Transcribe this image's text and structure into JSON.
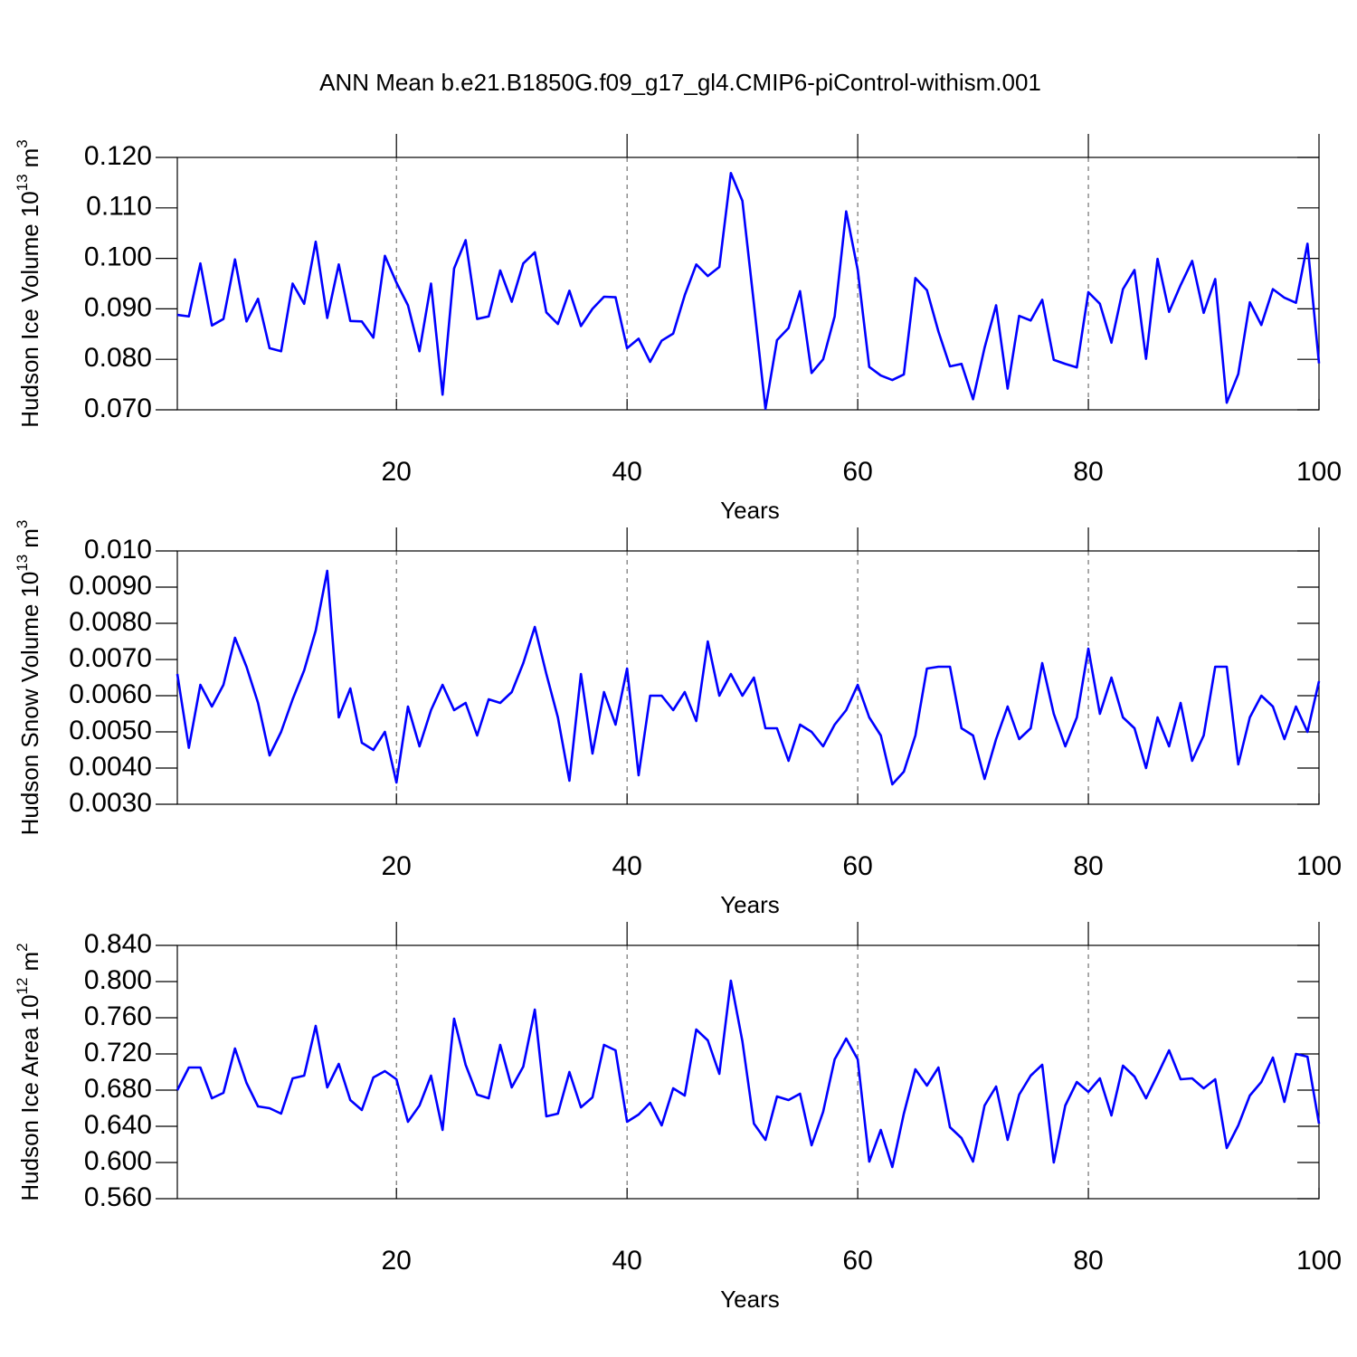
{
  "title": "ANN Mean b.e21.B1850G.f09_g17_gl4.CMIP6-piControl-withism.001",
  "chart_data": [
    {
      "type": "line",
      "ylabel": "Hudson Ice Volume",
      "yunit": {
        "scale": "10",
        "scale_exp": "13",
        "unit": "m",
        "unit_exp": "3"
      },
      "xlabel": "Years",
      "color": "#0000ff",
      "grid": "x",
      "xlim": [
        1,
        100
      ],
      "xticks": [
        20,
        40,
        60,
        80,
        100
      ],
      "ylim": [
        0.07,
        0.12
      ],
      "yticks": [
        {
          "value": 0.07,
          "label": "0.070"
        },
        {
          "value": 0.08,
          "label": "0.080"
        },
        {
          "value": 0.09,
          "label": "0.090"
        },
        {
          "value": 0.1,
          "label": "0.100"
        },
        {
          "value": 0.11,
          "label": "0.110"
        },
        {
          "value": 0.12,
          "label": "0.120"
        }
      ],
      "x": [
        1,
        2,
        3,
        4,
        5,
        6,
        7,
        8,
        9,
        10,
        11,
        12,
        13,
        14,
        15,
        16,
        17,
        18,
        19,
        20,
        21,
        22,
        23,
        24,
        25,
        26,
        27,
        28,
        29,
        30,
        31,
        32,
        33,
        34,
        35,
        36,
        37,
        38,
        39,
        40,
        41,
        42,
        43,
        44,
        45,
        46,
        47,
        48,
        49,
        50,
        51,
        52,
        53,
        54,
        55,
        56,
        57,
        58,
        59,
        60,
        61,
        62,
        63,
        64,
        65,
        66,
        67,
        68,
        69,
        70,
        71,
        72,
        73,
        74,
        75,
        76,
        77,
        78,
        79,
        80,
        81,
        82,
        83,
        84,
        85,
        86,
        87,
        88,
        89,
        90,
        91,
        92,
        93,
        94,
        95,
        96,
        97,
        98,
        99,
        100
      ],
      "values": [
        0.0888,
        0.0885,
        0.099,
        0.0867,
        0.088,
        0.0998,
        0.0875,
        0.092,
        0.0822,
        0.0816,
        0.095,
        0.091,
        0.1033,
        0.0882,
        0.0988,
        0.0876,
        0.0875,
        0.0843,
        0.1005,
        0.0952,
        0.0907,
        0.0816,
        0.095,
        0.073,
        0.098,
        0.1036,
        0.088,
        0.0885,
        0.0976,
        0.0914,
        0.099,
        0.1012,
        0.0893,
        0.087,
        0.0936,
        0.0866,
        0.09,
        0.0924,
        0.0923,
        0.0822,
        0.0841,
        0.0795,
        0.0837,
        0.0851,
        0.0927,
        0.0988,
        0.0965,
        0.0983,
        0.1169,
        0.1114,
        0.091,
        0.0702,
        0.0838,
        0.0862,
        0.0935,
        0.0773,
        0.08,
        0.0885,
        0.1093,
        0.0977,
        0.0785,
        0.0768,
        0.0759,
        0.077,
        0.0961,
        0.0937,
        0.0855,
        0.0786,
        0.0791,
        0.0721,
        0.0823,
        0.0907,
        0.0742,
        0.0886,
        0.0877,
        0.0918,
        0.0799,
        0.0791,
        0.0784,
        0.0933,
        0.091,
        0.0833,
        0.0939,
        0.0977,
        0.0801,
        0.0999,
        0.0894,
        0.0947,
        0.0995,
        0.0892,
        0.0959,
        0.0714,
        0.0771,
        0.0913,
        0.0868,
        0.0939,
        0.0922,
        0.0912,
        0.1029,
        0.0792
      ]
    },
    {
      "type": "line",
      "ylabel": "Hudson Snow Volume",
      "yunit": {
        "scale": "10",
        "scale_exp": "13",
        "unit": "m",
        "unit_exp": "3"
      },
      "xlabel": "Years",
      "color": "#0000ff",
      "grid": "x",
      "xlim": [
        1,
        100
      ],
      "xticks": [
        20,
        40,
        60,
        80,
        100
      ],
      "ylim": [
        0.003,
        0.01
      ],
      "yticks": [
        {
          "value": 0.003,
          "label": "0.0030"
        },
        {
          "value": 0.004,
          "label": "0.0040"
        },
        {
          "value": 0.005,
          "label": "0.0050"
        },
        {
          "value": 0.006,
          "label": "0.0060"
        },
        {
          "value": 0.007,
          "label": "0.0070"
        },
        {
          "value": 0.008,
          "label": "0.0080"
        },
        {
          "value": 0.009,
          "label": "0.0090"
        },
        {
          "value": 0.01,
          "label": "0.010"
        }
      ],
      "x": [
        1,
        2,
        3,
        4,
        5,
        6,
        7,
        8,
        9,
        10,
        11,
        12,
        13,
        14,
        15,
        16,
        17,
        18,
        19,
        20,
        21,
        22,
        23,
        24,
        25,
        26,
        27,
        28,
        29,
        30,
        31,
        32,
        33,
        34,
        35,
        36,
        37,
        38,
        39,
        40,
        41,
        42,
        43,
        44,
        45,
        46,
        47,
        48,
        49,
        50,
        51,
        52,
        53,
        54,
        55,
        56,
        57,
        58,
        59,
        60,
        61,
        62,
        63,
        64,
        65,
        66,
        67,
        68,
        69,
        70,
        71,
        72,
        73,
        74,
        75,
        76,
        77,
        78,
        79,
        80,
        81,
        82,
        83,
        84,
        85,
        86,
        87,
        88,
        89,
        90,
        91,
        92,
        93,
        94,
        95,
        96,
        97,
        98,
        99,
        100
      ],
      "values": [
        0.0066,
        0.00456,
        0.0063,
        0.0057,
        0.0063,
        0.0076,
        0.0068,
        0.0058,
        0.00435,
        0.005,
        0.0059,
        0.0067,
        0.0078,
        0.00945,
        0.0054,
        0.0062,
        0.0047,
        0.0045,
        0.005,
        0.0036,
        0.0057,
        0.0046,
        0.0056,
        0.0063,
        0.0056,
        0.0058,
        0.0049,
        0.0059,
        0.0058,
        0.0061,
        0.0069,
        0.0079,
        0.0066,
        0.0054,
        0.00365,
        0.0066,
        0.0044,
        0.0061,
        0.0052,
        0.00675,
        0.0038,
        0.006,
        0.006,
        0.0056,
        0.0061,
        0.0053,
        0.0075,
        0.006,
        0.0066,
        0.006,
        0.0065,
        0.0051,
        0.0051,
        0.0042,
        0.0052,
        0.005,
        0.0046,
        0.0052,
        0.0056,
        0.0063,
        0.0054,
        0.0049,
        0.00355,
        0.0039,
        0.0049,
        0.00675,
        0.0068,
        0.0068,
        0.0051,
        0.0049,
        0.0037,
        0.0048,
        0.0057,
        0.0048,
        0.0051,
        0.0069,
        0.0055,
        0.0046,
        0.0054,
        0.0073,
        0.0055,
        0.0065,
        0.0054,
        0.0051,
        0.004,
        0.0054,
        0.0046,
        0.0058,
        0.0042,
        0.0049,
        0.0068,
        0.0068,
        0.0041,
        0.0054,
        0.006,
        0.0057,
        0.0048,
        0.0057,
        0.005,
        0.0064
      ]
    },
    {
      "type": "line",
      "ylabel": "Hudson Ice Area",
      "yunit": {
        "scale": "10",
        "scale_exp": "12",
        "unit": "m",
        "unit_exp": "2"
      },
      "xlabel": "Years",
      "color": "#0000ff",
      "grid": "x",
      "xlim": [
        1,
        100
      ],
      "xticks": [
        20,
        40,
        60,
        80,
        100
      ],
      "ylim": [
        0.56,
        0.84
      ],
      "yticks": [
        {
          "value": 0.56,
          "label": "0.560"
        },
        {
          "value": 0.6,
          "label": "0.600"
        },
        {
          "value": 0.64,
          "label": "0.640"
        },
        {
          "value": 0.68,
          "label": "0.680"
        },
        {
          "value": 0.72,
          "label": "0.720"
        },
        {
          "value": 0.76,
          "label": "0.760"
        },
        {
          "value": 0.8,
          "label": "0.800"
        },
        {
          "value": 0.84,
          "label": "0.840"
        }
      ],
      "x": [
        1,
        2,
        3,
        4,
        5,
        6,
        7,
        8,
        9,
        10,
        11,
        12,
        13,
        14,
        15,
        16,
        17,
        18,
        19,
        20,
        21,
        22,
        23,
        24,
        25,
        26,
        27,
        28,
        29,
        30,
        31,
        32,
        33,
        34,
        35,
        36,
        37,
        38,
        39,
        40,
        41,
        42,
        43,
        44,
        45,
        46,
        47,
        48,
        49,
        50,
        51,
        52,
        53,
        54,
        55,
        56,
        57,
        58,
        59,
        60,
        61,
        62,
        63,
        64,
        65,
        66,
        67,
        68,
        69,
        70,
        71,
        72,
        73,
        74,
        75,
        76,
        77,
        78,
        79,
        80,
        81,
        82,
        83,
        84,
        85,
        86,
        87,
        88,
        89,
        90,
        91,
        92,
        93,
        94,
        95,
        96,
        97,
        98,
        99,
        100
      ],
      "values": [
        0.68,
        0.705,
        0.705,
        0.671,
        0.677,
        0.726,
        0.688,
        0.662,
        0.66,
        0.654,
        0.693,
        0.696,
        0.751,
        0.683,
        0.709,
        0.669,
        0.658,
        0.694,
        0.701,
        0.692,
        0.645,
        0.663,
        0.696,
        0.636,
        0.759,
        0.708,
        0.675,
        0.671,
        0.73,
        0.683,
        0.706,
        0.769,
        0.651,
        0.654,
        0.7,
        0.661,
        0.672,
        0.73,
        0.724,
        0.645,
        0.653,
        0.666,
        0.641,
        0.682,
        0.674,
        0.747,
        0.735,
        0.698,
        0.801,
        0.734,
        0.643,
        0.625,
        0.673,
        0.669,
        0.676,
        0.619,
        0.656,
        0.714,
        0.737,
        0.714,
        0.601,
        0.636,
        0.595,
        0.654,
        0.703,
        0.685,
        0.705,
        0.639,
        0.627,
        0.601,
        0.663,
        0.684,
        0.625,
        0.675,
        0.696,
        0.708,
        0.6,
        0.663,
        0.689,
        0.678,
        0.693,
        0.652,
        0.707,
        0.695,
        0.671,
        0.697,
        0.724,
        0.692,
        0.693,
        0.682,
        0.692,
        0.616,
        0.641,
        0.674,
        0.689,
        0.716,
        0.667,
        0.72,
        0.717,
        0.643
      ]
    }
  ]
}
